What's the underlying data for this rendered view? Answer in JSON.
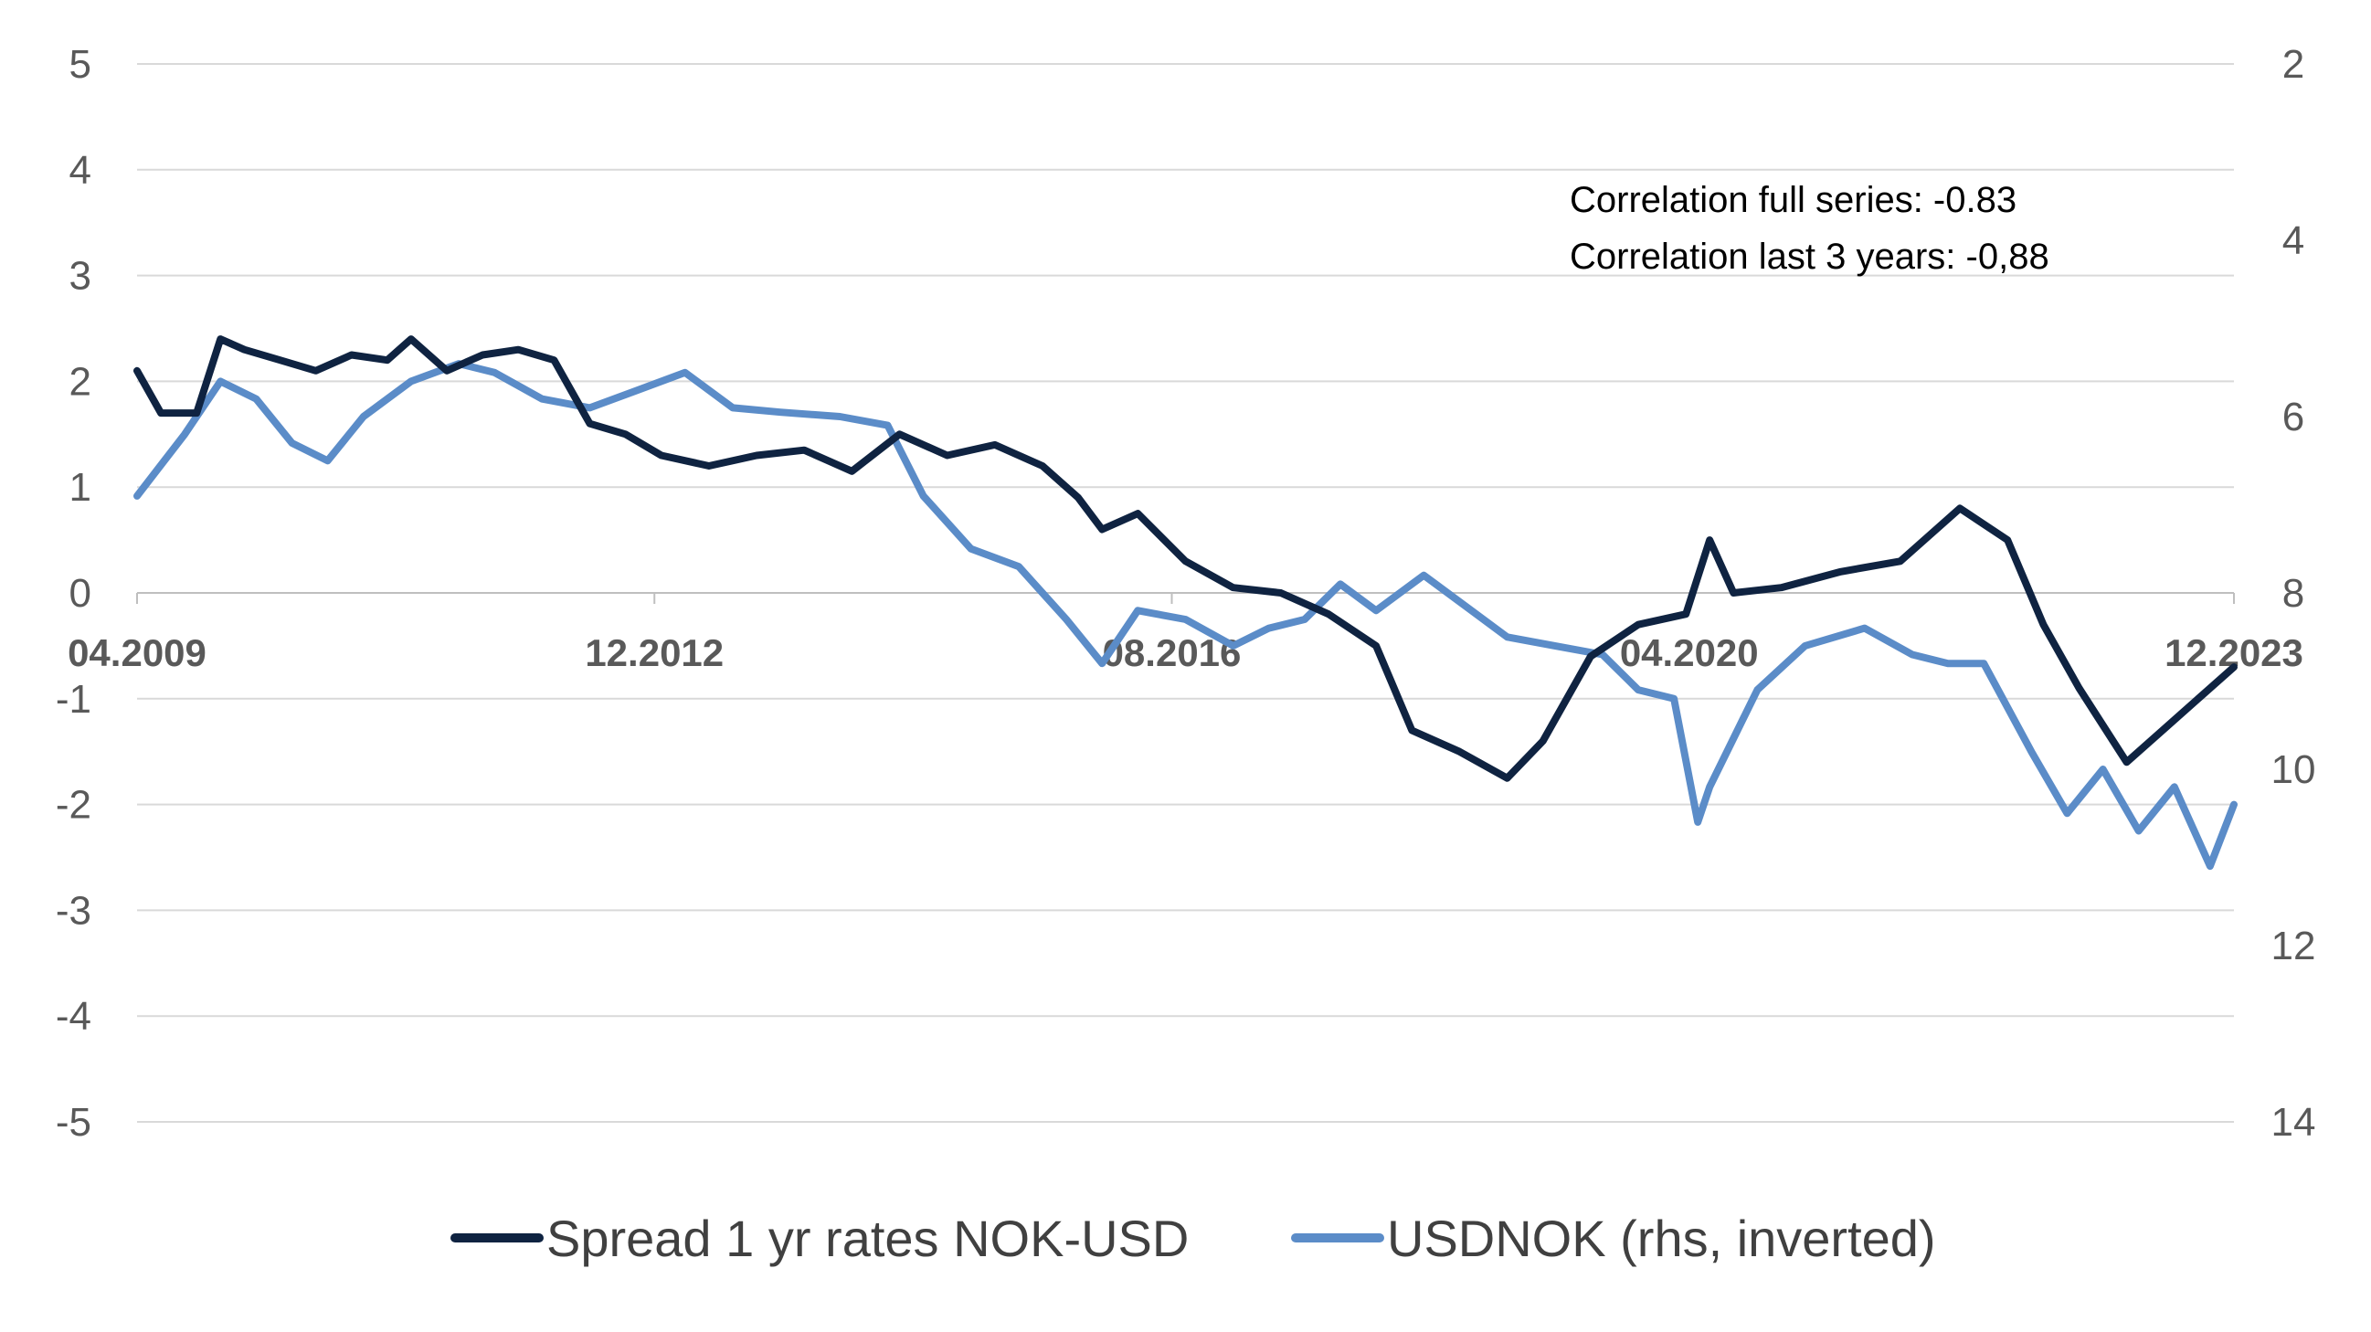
{
  "chart_data": {
    "type": "line",
    "title": "",
    "x_tick_labels": [
      "04.2009",
      "12.2012",
      "08.2016",
      "04.2020",
      "12.2023"
    ],
    "y_left": {
      "ticks": [
        "5",
        "4",
        "3",
        "2",
        "1",
        "0",
        "-1",
        "-2",
        "-3",
        "-4",
        "-5"
      ],
      "range": [
        -5,
        5
      ]
    },
    "y_right": {
      "ticks": [
        "2",
        "4",
        "6",
        "8",
        "10",
        "12",
        "14"
      ],
      "range": [
        2,
        14
      ],
      "inverted": true
    },
    "annotations": [
      "Correlation full series: -0.83",
      "Correlation last 3 years: -0,88"
    ],
    "gridlines": true,
    "legend_position": "bottom",
    "series": [
      {
        "name": "Spread 1 yr rates NOK-USD",
        "axis": "left",
        "color": "#0f2341",
        "points": [
          [
            "2009-04",
            2.1
          ],
          [
            "2009-06",
            1.7
          ],
          [
            "2009-09",
            1.7
          ],
          [
            "2009-11",
            2.4
          ],
          [
            "2010-01",
            2.3
          ],
          [
            "2010-04",
            2.2
          ],
          [
            "2010-07",
            2.1
          ],
          [
            "2010-10",
            2.25
          ],
          [
            "2011-01",
            2.2
          ],
          [
            "2011-03",
            2.4
          ],
          [
            "2011-06",
            2.1
          ],
          [
            "2011-09",
            2.25
          ],
          [
            "2011-12",
            2.3
          ],
          [
            "2012-03",
            2.2
          ],
          [
            "2012-06",
            1.6
          ],
          [
            "2012-09",
            1.5
          ],
          [
            "2012-12",
            1.3
          ],
          [
            "2013-04",
            1.2
          ],
          [
            "2013-08",
            1.3
          ],
          [
            "2013-12",
            1.35
          ],
          [
            "2014-04",
            1.15
          ],
          [
            "2014-08",
            1.5
          ],
          [
            "2014-12",
            1.3
          ],
          [
            "2015-04",
            1.4
          ],
          [
            "2015-08",
            1.2
          ],
          [
            "2015-11",
            0.9
          ],
          [
            "2016-01",
            0.6
          ],
          [
            "2016-04",
            0.75
          ],
          [
            "2016-08",
            0.3
          ],
          [
            "2016-12",
            0.05
          ],
          [
            "2017-04",
            0.0
          ],
          [
            "2017-08",
            -0.2
          ],
          [
            "2017-12",
            -0.5
          ],
          [
            "2018-03",
            -1.3
          ],
          [
            "2018-07",
            -1.5
          ],
          [
            "2018-11",
            -1.75
          ],
          [
            "2019-02",
            -1.4
          ],
          [
            "2019-06",
            -0.6
          ],
          [
            "2019-10",
            -0.3
          ],
          [
            "2020-02",
            -0.2
          ],
          [
            "2020-04",
            0.5
          ],
          [
            "2020-06",
            0.0
          ],
          [
            "2020-10",
            0.05
          ],
          [
            "2021-03",
            0.2
          ],
          [
            "2021-08",
            0.3
          ],
          [
            "2022-01",
            0.8
          ],
          [
            "2022-05",
            0.5
          ],
          [
            "2022-08",
            -0.3
          ],
          [
            "2022-11",
            -0.9
          ],
          [
            "2023-03",
            -1.6
          ],
          [
            "2023-06",
            -1.3
          ],
          [
            "2023-09",
            -1.0
          ],
          [
            "2023-12",
            -0.7
          ]
        ]
      },
      {
        "name": "USDNOK (rhs, inverted)",
        "axis": "right",
        "color": "#5b8cc8",
        "points": [
          [
            "2009-04",
            6.9
          ],
          [
            "2009-08",
            6.2
          ],
          [
            "2009-11",
            5.6
          ],
          [
            "2010-02",
            5.8
          ],
          [
            "2010-05",
            6.3
          ],
          [
            "2010-08",
            6.5
          ],
          [
            "2010-11",
            6.0
          ],
          [
            "2011-03",
            5.6
          ],
          [
            "2011-07",
            5.4
          ],
          [
            "2011-10",
            5.5
          ],
          [
            "2012-02",
            5.8
          ],
          [
            "2012-06",
            5.9
          ],
          [
            "2012-10",
            5.7
          ],
          [
            "2013-02",
            5.5
          ],
          [
            "2013-06",
            5.9
          ],
          [
            "2013-10",
            5.95
          ],
          [
            "2014-03",
            6.0
          ],
          [
            "2014-07",
            6.1
          ],
          [
            "2014-10",
            6.9
          ],
          [
            "2015-02",
            7.5
          ],
          [
            "2015-06",
            7.7
          ],
          [
            "2015-10",
            8.3
          ],
          [
            "2016-01",
            8.8
          ],
          [
            "2016-04",
            8.2
          ],
          [
            "2016-08",
            8.3
          ],
          [
            "2016-12",
            8.6
          ],
          [
            "2017-03",
            8.4
          ],
          [
            "2017-06",
            8.3
          ],
          [
            "2017-09",
            7.9
          ],
          [
            "2017-12",
            8.2
          ],
          [
            "2018-04",
            7.8
          ],
          [
            "2018-08",
            8.2
          ],
          [
            "2018-11",
            8.5
          ],
          [
            "2019-03",
            8.6
          ],
          [
            "2019-07",
            8.7
          ],
          [
            "2019-10",
            9.1
          ],
          [
            "2020-01",
            9.2
          ],
          [
            "2020-03",
            10.6
          ],
          [
            "2020-04",
            10.2
          ],
          [
            "2020-08",
            9.1
          ],
          [
            "2020-12",
            8.6
          ],
          [
            "2021-05",
            8.4
          ],
          [
            "2021-09",
            8.7
          ],
          [
            "2021-12",
            8.8
          ],
          [
            "2022-03",
            8.8
          ],
          [
            "2022-07",
            9.8
          ],
          [
            "2022-10",
            10.5
          ],
          [
            "2023-01",
            10.0
          ],
          [
            "2023-04",
            10.7
          ],
          [
            "2023-07",
            10.2
          ],
          [
            "2023-10",
            11.1
          ],
          [
            "2023-12",
            10.4
          ]
        ]
      }
    ]
  }
}
